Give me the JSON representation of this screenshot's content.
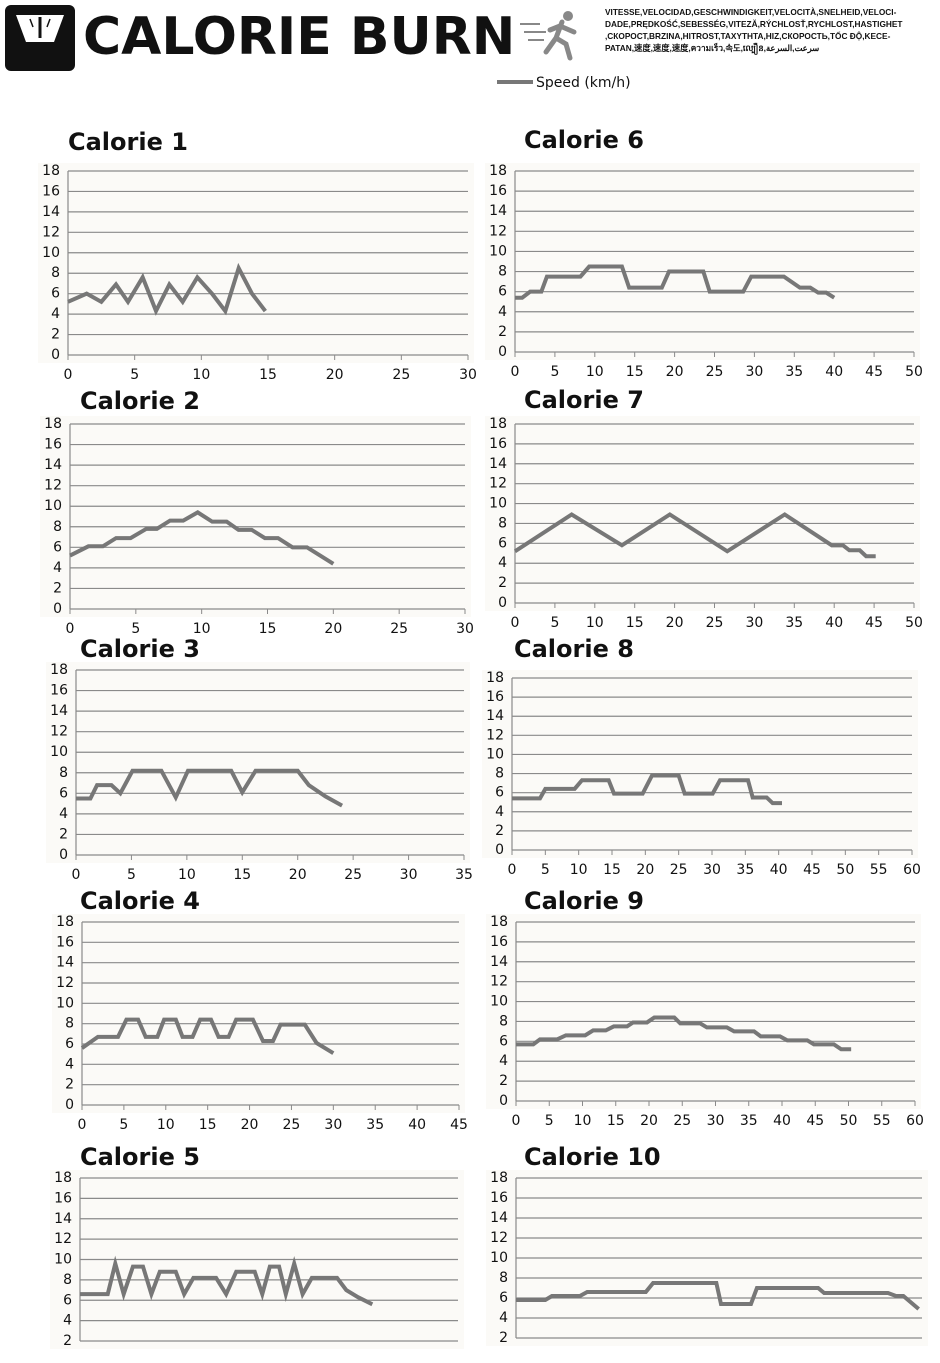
{
  "header": {
    "title": "CALORIE BURN",
    "speed_words": [
      "VITESSE,VELOCIDAD,GESCHWINDIGKEIT,VELOCITÀ,SNELHEID,VELOCI-",
      "DADE,PRĘDKOŚĆ,SEBESSÉG,VITEZĂ,RÝCHLOSŤ,RYCHLOST,HASTIGHET",
      ",СКОРОСТ,BRZINA,HITROST,ΤΑΧΥΤΗΤΑ,HIZ,СКОРОСТЬ,TỐC ĐỘ,KECE-",
      "PATAN,速度,速度,速度,ความเร็ว,속도,ល្បឿន,سرعت,السرعة"
    ]
  },
  "legend": {
    "label": "Speed (km/h)",
    "color": "#777777"
  },
  "chart_data": [
    {
      "type": "line",
      "title": "Calorie 1",
      "grid": true,
      "x": [
        0,
        1.4,
        2.5,
        3.6,
        4.5,
        5.6,
        6.6,
        7.6,
        8.6,
        9.7,
        10.8,
        11.8,
        12.8,
        13.8,
        14.8
      ],
      "series": [
        {
          "color": "#777777",
          "values": [
            5.2,
            6,
            5.2,
            6.9,
            5.2,
            7.6,
            4.3,
            6.9,
            5.2,
            7.6,
            6,
            4.3,
            8.5,
            6,
            4.3
          ]
        }
      ],
      "xlim": [
        0,
        30
      ],
      "xticks": [
        0,
        5,
        10,
        15,
        20,
        25,
        30
      ],
      "ylim": [
        0,
        18
      ],
      "yticks": [
        0,
        2,
        4,
        6,
        8,
        10,
        12,
        14,
        16,
        18
      ]
    },
    {
      "type": "line",
      "title": "Calorie 2",
      "grid": true,
      "x": [
        0,
        1.4,
        2.5,
        3.5,
        4.6,
        5.8,
        6.6,
        7.6,
        8.6,
        9.7,
        10.8,
        11.9,
        12.8,
        13.8,
        14.8,
        15.8,
        16.9,
        18,
        19,
        20
      ],
      "series": [
        {
          "color": "#777777",
          "values": [
            5.2,
            6.1,
            6.1,
            6.9,
            6.9,
            7.8,
            7.8,
            8.6,
            8.6,
            9.4,
            8.5,
            8.5,
            7.7,
            7.7,
            6.9,
            6.9,
            6,
            6,
            5.2,
            4.4
          ]
        }
      ],
      "xlim": [
        0,
        30
      ],
      "xticks": [
        0,
        5,
        10,
        15,
        20,
        25,
        30
      ],
      "ylim": [
        0,
        18
      ],
      "yticks": [
        0,
        2,
        4,
        6,
        8,
        10,
        12,
        14,
        16,
        18
      ]
    },
    {
      "type": "line",
      "title": "Calorie 3",
      "grid": true,
      "x": [
        0,
        1.3,
        1.9,
        3.2,
        4,
        5.1,
        7.7,
        9,
        10.1,
        14,
        15,
        16.2,
        20,
        21,
        22.5,
        24
      ],
      "series": [
        {
          "color": "#777777",
          "values": [
            5.5,
            5.5,
            6.8,
            6.8,
            6,
            8.2,
            8.2,
            5.6,
            8.2,
            8.2,
            6.1,
            8.2,
            8.2,
            6.8,
            5.7,
            4.8
          ]
        }
      ],
      "xlim": [
        0,
        35
      ],
      "xticks": [
        0,
        5,
        10,
        15,
        20,
        25,
        30,
        35
      ],
      "ylim": [
        0,
        18
      ],
      "yticks": [
        0,
        2,
        4,
        6,
        8,
        10,
        12,
        14,
        16,
        18
      ]
    },
    {
      "type": "line",
      "title": "Calorie 4",
      "grid": true,
      "x": [
        0,
        1.9,
        4.3,
        5.3,
        6.7,
        7.6,
        9,
        9.8,
        11.2,
        12,
        13.2,
        14.1,
        15.4,
        16.3,
        17.5,
        18.4,
        20.4,
        21.6,
        22.8,
        23.7,
        26.6,
        28,
        30
      ],
      "series": [
        {
          "color": "#777777",
          "values": [
            5.6,
            6.7,
            6.7,
            8.4,
            8.4,
            6.7,
            6.7,
            8.4,
            8.4,
            6.7,
            6.7,
            8.4,
            8.4,
            6.7,
            6.7,
            8.4,
            8.4,
            6.3,
            6.3,
            7.9,
            7.9,
            6.1,
            5.1
          ]
        }
      ],
      "xlim": [
        0,
        45
      ],
      "xticks": [
        0,
        5,
        10,
        15,
        20,
        25,
        30,
        35,
        40,
        45
      ],
      "ylim": [
        0,
        18
      ],
      "yticks": [
        0,
        2,
        4,
        6,
        8,
        10,
        12,
        14,
        16,
        18
      ]
    },
    {
      "type": "line",
      "title": "Calorie 5",
      "grid": true,
      "x": [
        0,
        3.3,
        4.2,
        5.2,
        6.3,
        7.5,
        8.5,
        9.5,
        11.4,
        12.4,
        13.5,
        16.2,
        17.4,
        18.6,
        20.8,
        21.7,
        22.6,
        23.7,
        24.5,
        25.5,
        26.5,
        27.6,
        30.6,
        31.7,
        33.1,
        34.8
      ],
      "series": [
        {
          "color": "#777777",
          "values": [
            6.6,
            6.6,
            9.6,
            6.6,
            9.3,
            9.3,
            6.6,
            8.8,
            8.8,
            6.6,
            8.2,
            8.2,
            6.6,
            8.8,
            8.8,
            6.6,
            9.3,
            9.3,
            6.6,
            9.6,
            6.6,
            8.2,
            8.2,
            7,
            6.3,
            5.6
          ]
        }
      ],
      "xlim": [
        0,
        45
      ],
      "ylim": [
        2,
        18
      ],
      "yticks": [
        2,
        4,
        6,
        8,
        10,
        12,
        14,
        16,
        18
      ]
    },
    {
      "type": "line",
      "title": "Calorie 6",
      "grid": true,
      "x": [
        0,
        0.9,
        1.9,
        3.3,
        4,
        8.2,
        9.3,
        13.4,
        14.3,
        18.4,
        19.3,
        23.6,
        24.4,
        28.6,
        29.6,
        33.7,
        35.7,
        37,
        38,
        39,
        40
      ],
      "series": [
        {
          "color": "#777777",
          "values": [
            5.4,
            5.4,
            6,
            6,
            7.5,
            7.5,
            8.5,
            8.5,
            6.4,
            6.4,
            8,
            8,
            6,
            6,
            7.5,
            7.5,
            6.4,
            6.4,
            5.9,
            5.9,
            5.4
          ]
        }
      ],
      "xlim": [
        0,
        50
      ],
      "xticks": [
        0,
        5,
        10,
        15,
        20,
        25,
        30,
        35,
        40,
        45,
        50
      ],
      "ylim": [
        0,
        18
      ],
      "yticks": [
        0,
        2,
        4,
        6,
        8,
        10,
        12,
        14,
        16,
        18
      ]
    },
    {
      "type": "line",
      "title": "Calorie 7",
      "grid": true,
      "x": [
        0,
        7.1,
        13.4,
        19.4,
        26.6,
        33.8,
        39.7,
        41.1,
        41.9,
        43.2,
        44,
        45.2
      ],
      "series": [
        {
          "color": "#777777",
          "values": [
            5.2,
            8.9,
            5.8,
            8.9,
            5.2,
            8.9,
            5.8,
            5.8,
            5.3,
            5.3,
            4.7,
            4.7
          ]
        }
      ],
      "xlim": [
        0,
        50
      ],
      "xticks": [
        0,
        5,
        10,
        15,
        20,
        25,
        30,
        35,
        40,
        45,
        50
      ],
      "ylim": [
        0,
        18
      ],
      "yticks": [
        0,
        2,
        4,
        6,
        8,
        10,
        12,
        14,
        16,
        18
      ]
    },
    {
      "type": "line",
      "title": "Calorie 8",
      "grid": true,
      "x": [
        0,
        4.2,
        5,
        9.4,
        10.5,
        14.5,
        15.3,
        19.6,
        21,
        25,
        25.9,
        30.1,
        31.2,
        35.4,
        36.1,
        38.2,
        39.1,
        40.5
      ],
      "series": [
        {
          "color": "#777777",
          "values": [
            5.4,
            5.4,
            6.4,
            6.4,
            7.3,
            7.3,
            5.9,
            5.9,
            7.8,
            7.8,
            5.9,
            5.9,
            7.3,
            7.3,
            5.5,
            5.5,
            4.9,
            4.9
          ]
        }
      ],
      "xlim": [
        0,
        60
      ],
      "xticks": [
        0,
        5,
        10,
        15,
        20,
        25,
        30,
        35,
        40,
        45,
        50,
        55,
        60
      ],
      "ylim": [
        0,
        18
      ],
      "yticks": [
        0,
        2,
        4,
        6,
        8,
        10,
        12,
        14,
        16,
        18
      ]
    },
    {
      "type": "line",
      "title": "Calorie 9",
      "grid": true,
      "x": [
        0,
        2.6,
        3.6,
        6.2,
        7.5,
        10.4,
        11.6,
        13.5,
        14.7,
        16.7,
        17.6,
        19.7,
        20.8,
        23.8,
        24.7,
        27.7,
        28.7,
        31.7,
        32.8,
        35.8,
        36.8,
        39.7,
        40.8,
        43.8,
        44.8,
        47.8,
        48.9,
        50.4
      ],
      "series": [
        {
          "color": "#777777",
          "values": [
            5.7,
            5.7,
            6.2,
            6.2,
            6.6,
            6.6,
            7.1,
            7.1,
            7.5,
            7.5,
            7.9,
            7.9,
            8.4,
            8.4,
            7.8,
            7.8,
            7.4,
            7.4,
            7,
            7,
            6.5,
            6.5,
            6.1,
            6.1,
            5.7,
            5.7,
            5.2,
            5.2
          ]
        }
      ],
      "xlim": [
        0,
        60
      ],
      "xticks": [
        0,
        5,
        10,
        15,
        20,
        25,
        30,
        35,
        40,
        45,
        50,
        55,
        60
      ],
      "ylim": [
        0,
        18
      ],
      "yticks": [
        0,
        2,
        4,
        6,
        8,
        10,
        12,
        14,
        16,
        18
      ]
    },
    {
      "type": "line",
      "title": "Calorie 10",
      "grid": true,
      "x": [
        0,
        4.4,
        5.4,
        9.6,
        10.7,
        19.5,
        20.6,
        30.1,
        30.8,
        35.3,
        36.2,
        45.4,
        46.3,
        55.9,
        57.1,
        58.2,
        60.5
      ],
      "series": [
        {
          "color": "#777777",
          "values": [
            5.8,
            5.8,
            6.2,
            6.2,
            6.6,
            6.6,
            7.5,
            7.5,
            5.4,
            5.4,
            7,
            7,
            6.5,
            6.5,
            6.2,
            6.2,
            4.9
          ]
        }
      ],
      "xlim": [
        0,
        61
      ],
      "ylim": [
        2,
        18
      ],
      "yticks": [
        2,
        4,
        6,
        8,
        10,
        12,
        14,
        16,
        18
      ]
    }
  ]
}
